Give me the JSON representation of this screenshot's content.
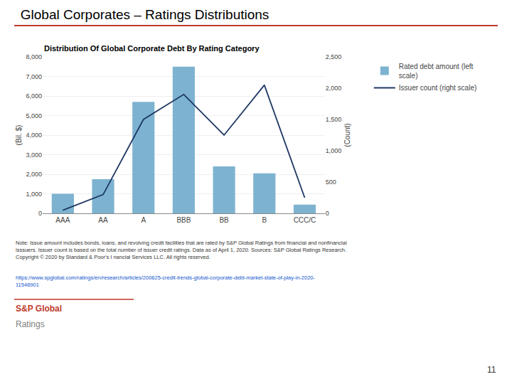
{
  "chart_data": {
    "type": "bar",
    "title": "Global Corporates – Ratings Distributions",
    "subtitle": "Distribution Of Global Corporate Debt By Rating Category",
    "categories": [
      "AAA",
      "AA",
      "A",
      "BBB",
      "BB",
      "B",
      "CCC/C"
    ],
    "series": [
      {
        "name": "Rated debt amount (left\nscale)",
        "type": "bar",
        "color": "#7db3d0",
        "values": [
          1000,
          1750,
          5700,
          7500,
          2400,
          2050,
          450
        ]
      },
      {
        "name": "Issuer count (right scale)",
        "type": "line",
        "color": "#1f3864",
        "axis": "y2",
        "values": [
          50,
          300,
          1500,
          1900,
          1250,
          2050,
          250
        ]
      }
    ],
    "ylabel": "(Bil. $)",
    "y2label": "(Count)",
    "ylim": [
      0,
      8000
    ],
    "yticks": [
      0,
      {
        "value": 1000,
        "label": "1,000"
      },
      {
        "value": 2000,
        "label": "2,000"
      },
      {
        "value": 3000,
        "label": "3,000"
      },
      {
        "value": 4000,
        "label": "4,000"
      },
      {
        "value": 5000,
        "label": "5,000"
      },
      {
        "value": 6000,
        "label": "6,000"
      },
      {
        "value": 7000,
        "label": "7,000"
      },
      {
        "value": 8000,
        "label": "8,000"
      }
    ],
    "y2lim": [
      0,
      2500
    ],
    "y2ticks": [
      0,
      500,
      {
        "value": 1000,
        "label": "1,000"
      },
      {
        "value": 1500,
        "label": "1,500"
      },
      {
        "value": 2000,
        "label": "2,000"
      },
      {
        "value": 2500,
        "label": "2,500"
      }
    ],
    "grid": true,
    "legend": "right",
    "annotations": [
      "Note: Issue amount includes bonds, loans, and revolving credit facilities that are rated by S&P Global Ratings from financial and nonfinancial\nisssuers. Issuer count is based on the total number of issuer credit ratings. Data as of April 1, 2020. Sources: S&P Global Ratings Research.\nCopyright © 2020 by Standard & Poor's I nancial Services LLC. All rights reserved.",
      "https://www.spglobal.com/ratings/en/research/articles/200625-credit-trends-global-corporate-debt-market-state-of-play-in-2020-\n11546901",
      "S&P Global",
      "Ratings",
      "11"
    ]
  }
}
